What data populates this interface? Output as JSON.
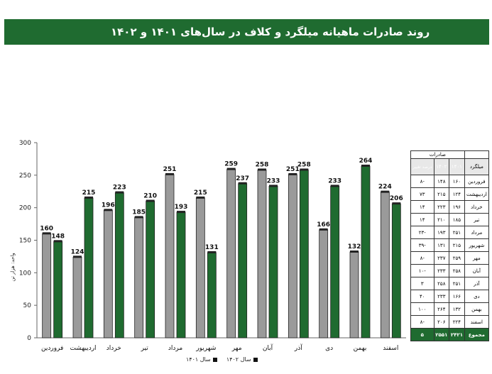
{
  "title": "روند صادرات ماهیانه میلگرد و کلاف در سال‌های ۱۴۰۱ و ۱۴۰۲",
  "colors": {
    "y1401": "#9a9a9a",
    "y1402": "#1f6b30",
    "axis": "#666666"
  },
  "chart_data": {
    "type": "bar",
    "categories": [
      "فروردین",
      "اردیبهشت",
      "خرداد",
      "تیر",
      "مرداد",
      "شهریور",
      "مهر",
      "آبان",
      "آذر",
      "دی",
      "بهمن",
      "اسفند"
    ],
    "series": [
      {
        "name": "سال ۱۴۰۱",
        "values": [
          160,
          124,
          196,
          185,
          251,
          215,
          259,
          258,
          251,
          166,
          132,
          224
        ]
      },
      {
        "name": "سال ۱۴۰۲",
        "values": [
          148,
          215,
          223,
          210,
          193,
          131,
          237,
          233,
          258,
          233,
          264,
          206
        ]
      }
    ],
    "yticks": [
      0,
      50,
      100,
      150,
      200,
      250,
      300
    ],
    "ylim": [
      0,
      300
    ],
    "ylabel": "واحد: هزار تن",
    "legend_position": "bottom"
  },
  "table": {
    "group_header": "صادرات",
    "headers": [
      "میلگرد",
      "۱۴۰۱",
      "۱۴۰۲",
      "درصد تغییر"
    ],
    "rows": [
      [
        "فروردین",
        "۱۶۰",
        "۱۴۸",
        "-۸"
      ],
      [
        "اردیبهشت",
        "۱۲۴",
        "۲۱۵",
        "۷۳"
      ],
      [
        "خرداد",
        "۱۹۶",
        "۲۲۳",
        "۱۴"
      ],
      [
        "تیر",
        "۱۸۵",
        "۲۱۰",
        "۱۴"
      ],
      [
        "مرداد",
        "۲۵۱",
        "۱۹۳",
        "-۲۳"
      ],
      [
        "شهریور",
        "۲۱۵",
        "۱۳۱",
        "-۳۹"
      ],
      [
        "مهر",
        "۲۵۹",
        "۲۳۷",
        "-۸"
      ],
      [
        "آبان",
        "۲۵۸",
        "۲۳۳",
        "-۱۰"
      ],
      [
        "آذر",
        "۲۵۱",
        "۲۵۸",
        "۳"
      ],
      [
        "دی",
        "۱۶۶",
        "۲۳۳",
        "۴۰"
      ],
      [
        "بهمن",
        "۱۳۲",
        "۲۶۴",
        "۱۰۰"
      ],
      [
        "اسفند",
        "۲۲۴",
        "۲۰۶",
        "-۸"
      ]
    ],
    "total": [
      "مجموع",
      "۲۴۲۱",
      "۲۵۵۱",
      "۵"
    ]
  }
}
